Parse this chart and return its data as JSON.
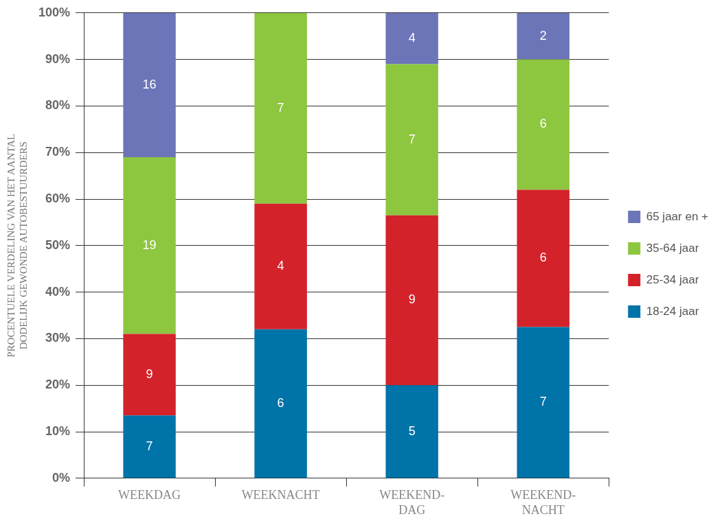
{
  "chart_data": {
    "type": "bar",
    "stacked": true,
    "ylabel": "PROCENTUELE VERDELING VAN HET AANTAL DODELIJK GEWONDE AUTOBESTUURDERS",
    "categories": [
      "WEEKDAG",
      "WEEKNACHT",
      "WEEKEND-DAG",
      "WEEKEND-NACHT"
    ],
    "series": [
      {
        "name": "18-24 jaar",
        "color": "#0073a8",
        "values": [
          13.5,
          32,
          20,
          32.5
        ]
      },
      {
        "name": "25-34 jaar",
        "color": "#d4222b",
        "values": [
          17.5,
          27,
          36.5,
          29.5
        ]
      },
      {
        "name": "35-64 jaar",
        "color": "#8dc63f",
        "values": [
          38,
          41,
          32.5,
          28
        ]
      },
      {
        "name": "65 jaar en +",
        "color": "#6c75b8",
        "values": [
          31,
          null,
          11,
          10
        ]
      }
    ],
    "annotations": [
      "7",
      "9",
      "19",
      "16",
      "6",
      "4",
      "7",
      "5",
      "9",
      "7",
      "4",
      "7",
      "6",
      "6",
      "2"
    ],
    "ylim": [
      0,
      100
    ],
    "yticks": [
      {
        "value": 0,
        "label": "0%"
      },
      {
        "value": 10,
        "label": "10%"
      },
      {
        "value": 20,
        "label": "20%"
      },
      {
        "value": 30,
        "label": "30%"
      },
      {
        "value": 40,
        "label": "40%"
      },
      {
        "value": 50,
        "label": "50%"
      },
      {
        "value": 60,
        "label": "60%"
      },
      {
        "value": 70,
        "label": "70%"
      },
      {
        "value": 80,
        "label": "80%"
      },
      {
        "value": 90,
        "label": "90%"
      },
      {
        "value": 100,
        "label": "100%"
      }
    ],
    "grid": "y",
    "legend": "right"
  }
}
